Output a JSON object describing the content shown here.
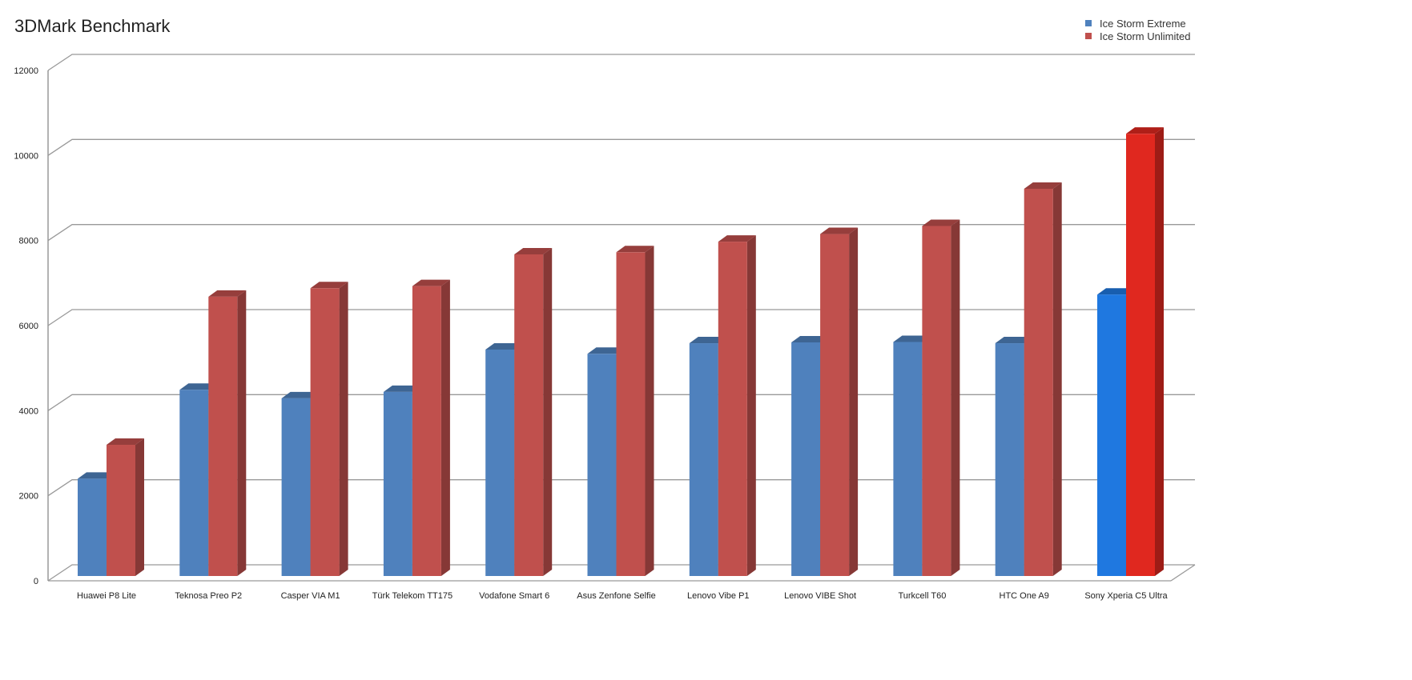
{
  "chart_data": {
    "type": "bar",
    "title": "3DMark Benchmark",
    "xlabel": "",
    "ylabel": "",
    "ylim": [
      0,
      12000
    ],
    "yticks": [
      0,
      2000,
      4000,
      6000,
      8000,
      10000,
      12000
    ],
    "grid": true,
    "legend_position": "top-right",
    "categories": [
      "Huawei P8 Lite",
      "Teknosa Preo P2",
      "Casper VIA M1",
      "Türk Telekom TT175",
      "Vodafone Smart 6",
      "Asus Zenfone Selfie",
      "Lenovo Vibe P1",
      "Lenovo VIBE Shot",
      "Turkcell T60",
      "HTC One A9",
      "Sony Xperia C5 Ultra"
    ],
    "series": [
      {
        "name": "Ice Storm Extreme",
        "color": "#4f81bd",
        "values": [
          2300,
          4400,
          4200,
          4350,
          5350,
          5250,
          5500,
          5520,
          5530,
          5500,
          6650
        ]
      },
      {
        "name": "Ice Storm Unlimited",
        "color": "#c0504d",
        "values": [
          3100,
          6600,
          6800,
          6850,
          7600,
          7650,
          7900,
          8080,
          8270,
          9150,
          10450
        ]
      }
    ],
    "highlight": {
      "category": "Sony Xperia C5 Ultra",
      "colors": [
        "#1f78e0",
        "#e0281f"
      ]
    }
  }
}
